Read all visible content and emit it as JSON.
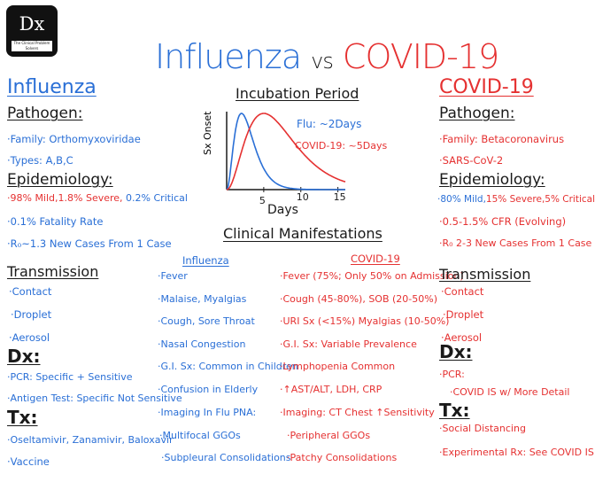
{
  "logo": {
    "text": "Dx",
    "tagline": "The Clinical Problem Solvers"
  },
  "title": {
    "left": "Influenza",
    "vs": "vs",
    "right": "COVID-19"
  },
  "incubation": {
    "heading": "Incubation Period",
    "y_label": "Sx Onset",
    "x_label": "Days",
    "flu_label": "Flu: ~2Days",
    "covid_label": "COVID-19: ~5Days"
  },
  "chart_data": {
    "type": "line",
    "title": "Incubation Period",
    "xlabel": "Days",
    "ylabel": "Sx Onset",
    "x_ticks": [
      5,
      10,
      15
    ],
    "xlim": [
      0,
      16
    ],
    "series": [
      {
        "name": "Flu: ~2Days",
        "peak_day": 2,
        "color": "#2a6fd6"
      },
      {
        "name": "COVID-19: ~5Days",
        "peak_day": 5,
        "color": "#e53131"
      }
    ]
  },
  "left": {
    "heading": "Influenza",
    "pathogen_heading": "Pathogen:",
    "pathogen": [
      "·Family: Orthomyxoviridae",
      "·Types: A,B,C"
    ],
    "epi_heading": "Epidemiology:",
    "epi_line1": {
      "a": "·98% Mild,",
      "b": "1.8% Severe,",
      "c": "0.2% Critical"
    },
    "epi": [
      "·0.1% Fatality Rate",
      "·R₀~1.3 New Cases From 1 Case"
    ],
    "transmission_heading": "Transmission",
    "transmission": [
      "·Contact",
      "·Droplet",
      "·Aerosol"
    ],
    "dx_heading": "Dx:",
    "dx": [
      "·PCR: Specific + Sensitive",
      "·Antigen Test: Specific Not Sensitive"
    ],
    "tx_heading": "Tx:",
    "tx": [
      "·Oseltamivir, Zanamivir, Baloxavir",
      "·Vaccine"
    ]
  },
  "clinical": {
    "heading": "Clinical Manifestations",
    "flu_heading": "Influenza",
    "flu": [
      "·Fever",
      "·Malaise, Myalgias",
      "·Cough, Sore Throat",
      "·Nasal Congestion",
      "·G.I. Sx: Common in Children",
      "·Confusion in Elderly",
      "·Imaging In Flu PNA:"
    ],
    "flu_sub": [
      "·Multifocal GGOs",
      "·Subpleural Consolidations"
    ],
    "covid_heading": "COVID-19",
    "covid": [
      "·Fever (75%; Only 50% on Admission)",
      "·Cough (45-80%), SOB (20-50%)",
      "·URI Sx (<15%) Myalgias (10-50%)",
      "·G.I. Sx: Variable Prevalence",
      "·Lymphopenia Common",
      "·↑AST/ALT, LDH, CRP",
      "·Imaging: CT Chest ↑Sensitivity"
    ],
    "covid_sub": [
      "·Peripheral GGOs",
      "·Patchy Consolidations"
    ]
  },
  "right": {
    "heading": "COVID-19",
    "pathogen_heading": "Pathogen:",
    "pathogen": [
      "·Family: Betacoronavirus",
      "·SARS-CoV-2"
    ],
    "epi_heading": "Epidemiology:",
    "epi_line1": {
      "a": "·80% Mild,",
      "b": "15% Severe,",
      "c": "5% Critical"
    },
    "epi": [
      "·0.5-1.5% CFR (Evolving)",
      "·R₀ 2-3 New Cases From 1 Case"
    ],
    "transmission_heading": "Transmission",
    "transmission": [
      "·Contact",
      "·Droplet",
      "·Aerosol"
    ],
    "dx_heading": "Dx:",
    "dx": [
      "·PCR:"
    ],
    "dx_sub": [
      "·COVID IS w/ More Detail"
    ],
    "tx_heading": "Tx:",
    "tx": [
      "·Social Distancing",
      "·Experimental Rx: See COVID IS"
    ]
  }
}
